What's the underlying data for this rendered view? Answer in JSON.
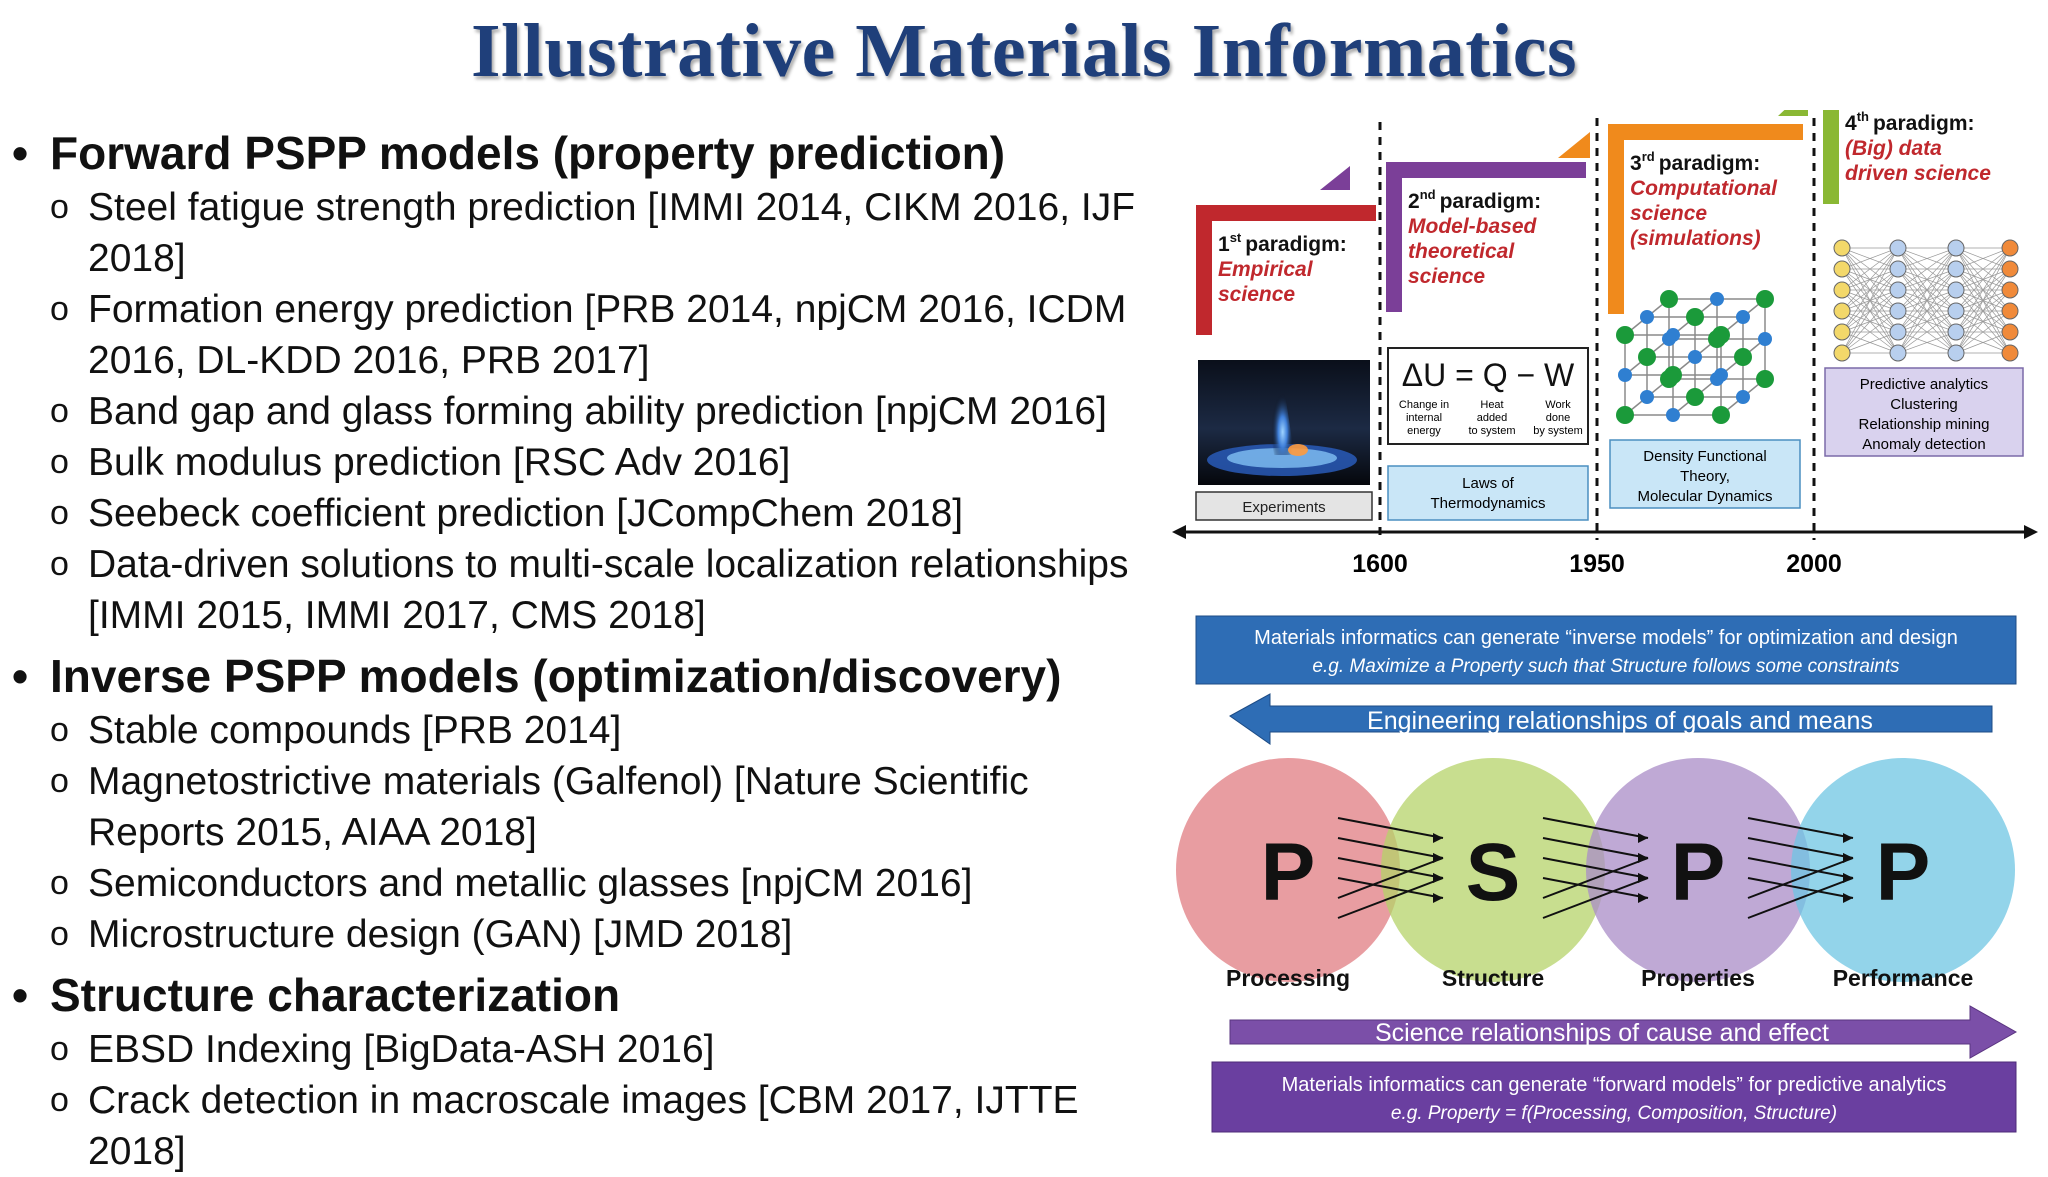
{
  "title": "Illustrative Materials Informatics",
  "sections": [
    {
      "heading": "Forward PSPP models (property prediction)",
      "items": [
        [
          "Steel fatigue strength prediction [IMMI 2014, CIKM 2016, IJF",
          "2018]"
        ],
        [
          "Formation energy prediction [PRB 2014, npjCM 2016, ICDM",
          "2016, DL-KDD 2016, PRB 2017]"
        ],
        [
          "Band gap and glass forming ability prediction [npjCM 2016]"
        ],
        [
          "Bulk modulus prediction [RSC Adv 2016]"
        ],
        [
          "Seebeck coefficient prediction [JCompChem 2018]"
        ],
        [
          "Data-driven solutions to multi-scale localization relationships",
          "[IMMI 2015, IMMI 2017, CMS 2018]"
        ]
      ]
    },
    {
      "heading": "Inverse PSPP models (optimization/discovery)",
      "items": [
        [
          "Stable compounds [PRB 2014]"
        ],
        [
          "Magnetostrictive materials (Galfenol) [Nature Scientific",
          "Reports 2015, AIAA 2018]"
        ],
        [
          "Semiconductors and metallic glasses [npjCM 2016]"
        ],
        [
          "Microstructure design (GAN) [JMD 2018]"
        ]
      ]
    },
    {
      "heading": "Structure characterization",
      "items": [
        [
          "EBSD Indexing [BigData-ASH 2016]"
        ],
        [
          "Crack detection in macroscale images [CBM 2017, IJTTE 2018]"
        ]
      ]
    }
  ],
  "timeline": {
    "years": [
      "1600",
      "1950",
      "2000"
    ],
    "paradigms": [
      {
        "num": "1",
        "sup": "st",
        "word": "paradigm:",
        "desc": [
          "Empirical",
          "science"
        ],
        "box": [
          "Experiments"
        ],
        "color": "#c0282d"
      },
      {
        "num": "2",
        "sup": "nd",
        "word": "paradigm:",
        "desc": [
          "Model-based",
          "theoretical",
          "science"
        ],
        "box": [
          "Laws of",
          "Thermodynamics"
        ],
        "color": "#7b3f98"
      },
      {
        "num": "3",
        "sup": "rd",
        "word": "paradigm:",
        "desc": [
          "Computational",
          "science",
          "(simulations)"
        ],
        "box": [
          "Density Functional",
          "Theory,",
          "Molecular Dynamics"
        ],
        "color": "#f08a1c"
      },
      {
        "num": "4",
        "sup": "th",
        "word": "paradigm:",
        "desc": [
          "(Big) data",
          "driven science"
        ],
        "box": [
          "Predictive analytics",
          "Clustering",
          "Relationship mining",
          "Anomaly detection"
        ],
        "color": "#8ab834"
      }
    ],
    "equation": "ΔU = Q − W",
    "equation_terms": [
      [
        "Change in",
        "internal",
        "energy"
      ],
      [
        "Heat",
        "added",
        "to system"
      ],
      [
        "Work",
        "done",
        "by system"
      ]
    ]
  },
  "pspp": {
    "top_banner": [
      "Materials informatics can generate “inverse models” for optimization and design",
      "e.g. Maximize a Property such that Structure follows some constraints"
    ],
    "top_arrow": "Engineering relationships of goals and means",
    "circles": [
      {
        "letter": "P",
        "label": "Processing",
        "color": "#e07c82"
      },
      {
        "letter": "S",
        "label": "Structure",
        "color": "#b5d36a"
      },
      {
        "letter": "P",
        "label": "Properties",
        "color": "#a98cc7"
      },
      {
        "letter": "P",
        "label": "Performance",
        "color": "#6fc6e3"
      }
    ],
    "bottom_arrow": "Science relationships of cause and effect",
    "bottom_banner": [
      "Materials informatics can generate “forward models” for predictive analytics",
      "e.g. Property = f(Processing, Composition, Structure)"
    ]
  }
}
